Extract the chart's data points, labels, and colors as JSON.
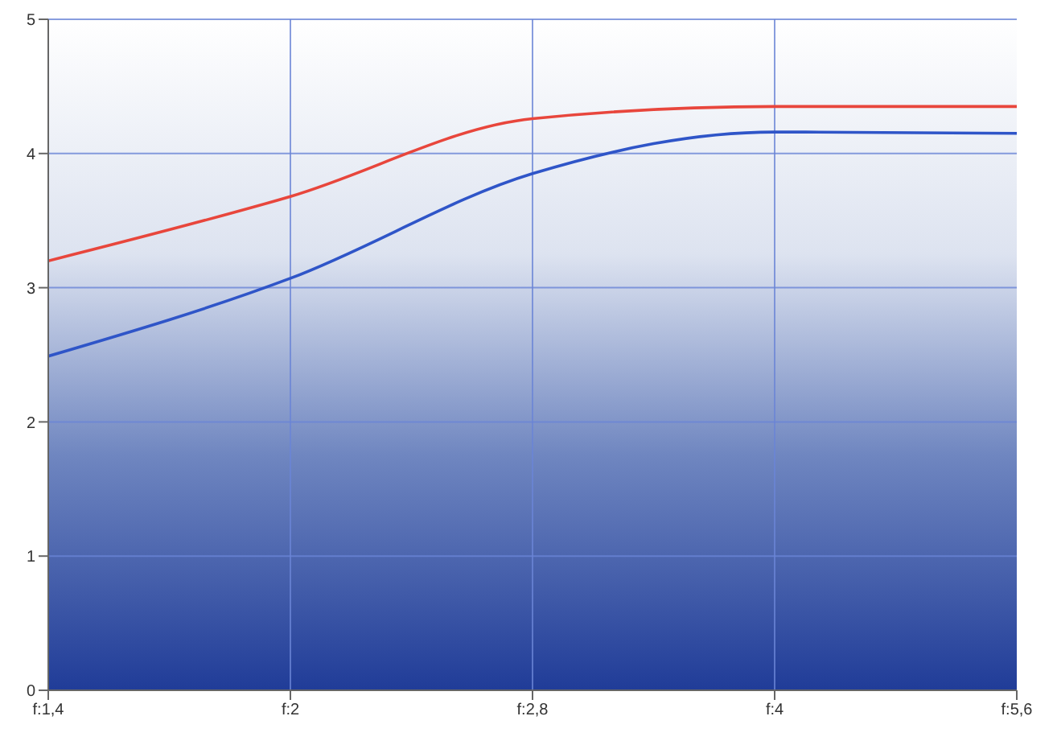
{
  "chart_data": {
    "type": "line",
    "categories": [
      "f:1,4",
      "f:2",
      "f:2,8",
      "f:4",
      "f:5,6"
    ],
    "series": [
      {
        "color": "#e8463c",
        "values": [
          3.2,
          3.68,
          4.26,
          4.35,
          4.35
        ]
      },
      {
        "color": "#2f55c8",
        "values": [
          2.49,
          3.07,
          3.85,
          4.16,
          4.15
        ]
      }
    ],
    "ylim": [
      0,
      5
    ],
    "yticks": [
      0,
      1,
      2,
      3,
      4,
      5
    ],
    "grid": true,
    "marker": "none",
    "line_style": "solid"
  }
}
